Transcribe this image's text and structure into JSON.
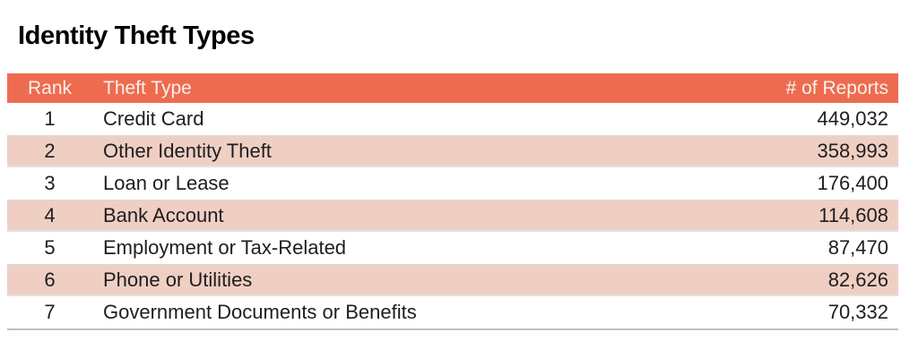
{
  "title": "Identity Theft Types",
  "table": {
    "columns": {
      "rank": "Rank",
      "type": "Theft Type",
      "reports": "# of Reports"
    },
    "rows": [
      {
        "rank": "1",
        "type": "Credit Card",
        "reports": "449,032"
      },
      {
        "rank": "2",
        "type": "Other Identity Theft",
        "reports": "358,993"
      },
      {
        "rank": "3",
        "type": "Loan or Lease",
        "reports": "176,400"
      },
      {
        "rank": "4",
        "type": "Bank Account",
        "reports": "114,608"
      },
      {
        "rank": "5",
        "type": "Employment or Tax-Related",
        "reports": "87,470"
      },
      {
        "rank": "6",
        "type": "Phone or Utilities",
        "reports": "82,626"
      },
      {
        "rank": "7",
        "type": "Government Documents or Benefits",
        "reports": "70,332"
      }
    ]
  },
  "colors": {
    "header_bg": "#ED6C4F",
    "alt_row_bg": "#F0CFC3",
    "header_text": "#FBF0EC",
    "body_text": "#1E1E1E",
    "title_text": "#000000",
    "bottom_border": "#C2BEBC"
  },
  "chart_data": {
    "type": "table",
    "title": "Identity Theft Types",
    "columns": [
      "Rank",
      "Theft Type",
      "# of Reports"
    ],
    "categories": [
      "Credit Card",
      "Other Identity Theft",
      "Loan or Lease",
      "Bank Account",
      "Employment or Tax-Related",
      "Phone or Utilities",
      "Government Documents or Benefits"
    ],
    "values": [
      449032,
      358993,
      176400,
      114608,
      87470,
      82626,
      70332
    ],
    "layout": {
      "ranked": true,
      "zebra_striping": true,
      "value_alignment": "right"
    }
  }
}
